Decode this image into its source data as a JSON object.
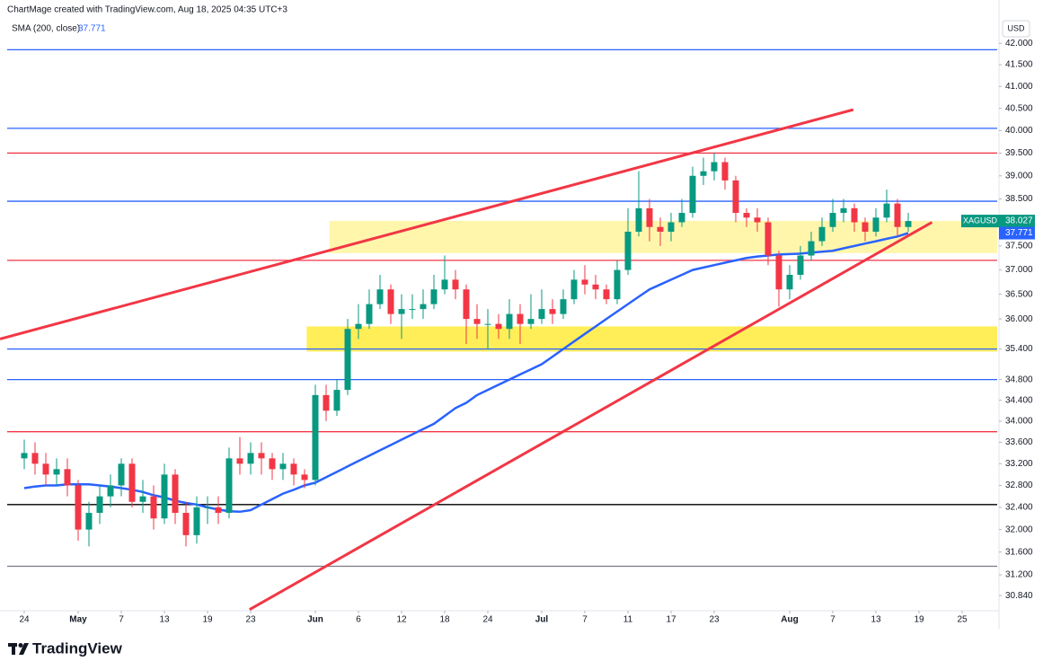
{
  "chart_data": {
    "type": "candlestick",
    "title": "ChartMage created with TradingView.com, Aug 18, 2025 04:35 UTC+3",
    "symbol": "XAGUSD",
    "currency": "USD",
    "brand": "TradingView",
    "log": true,
    "up_color": "#089981",
    "down_color": "#f23645",
    "xlim": [
      -2.25,
      90.25
    ],
    "ylim": [
      30.58,
      42.6
    ],
    "xticks": [
      {
        "value": 0,
        "label": "24"
      },
      {
        "value": 5,
        "label": "May"
      },
      {
        "value": 9,
        "label": "7"
      },
      {
        "value": 13,
        "label": "13"
      },
      {
        "value": 17,
        "label": "19"
      },
      {
        "value": 21,
        "label": "23"
      },
      {
        "value": 27,
        "label": "Jun"
      },
      {
        "value": 31,
        "label": "6"
      },
      {
        "value": 35,
        "label": "12"
      },
      {
        "value": 39,
        "label": "18"
      },
      {
        "value": 43,
        "label": "24"
      },
      {
        "value": 48,
        "label": "Jul"
      },
      {
        "value": 52,
        "label": "7"
      },
      {
        "value": 56,
        "label": "11"
      },
      {
        "value": 60,
        "label": "17"
      },
      {
        "value": 64,
        "label": "23"
      },
      {
        "value": 71,
        "label": "Aug"
      },
      {
        "value": 75,
        "label": "7"
      },
      {
        "value": 79,
        "label": "13"
      },
      {
        "value": 83,
        "label": "19"
      },
      {
        "value": 87,
        "label": "25"
      }
    ],
    "yticks": [
      {
        "value": 42,
        "label": "42.000"
      },
      {
        "value": 41.5,
        "label": "41.500"
      },
      {
        "value": 41,
        "label": "41.000"
      },
      {
        "value": 40.5,
        "label": "40.500"
      },
      {
        "value": 40,
        "label": "40.000"
      },
      {
        "value": 39.5,
        "label": "39.500"
      },
      {
        "value": 39,
        "label": "39.000"
      },
      {
        "value": 38.5,
        "label": "38.500"
      },
      {
        "value": 37.5,
        "label": "37.500"
      },
      {
        "value": 37,
        "label": "37.000"
      },
      {
        "value": 36.5,
        "label": "36.500"
      },
      {
        "value": 36,
        "label": "36.000"
      },
      {
        "value": 35.4,
        "label": "35.400"
      },
      {
        "value": 34.8,
        "label": "34.800"
      },
      {
        "value": 34.4,
        "label": "34.400"
      },
      {
        "value": 34,
        "label": "34.000"
      },
      {
        "value": 33.6,
        "label": "33.600"
      },
      {
        "value": 33.2,
        "label": "33.200"
      },
      {
        "value": 32.8,
        "label": "32.800"
      },
      {
        "value": 32.4,
        "label": "32.400"
      },
      {
        "value": 32,
        "label": "32.000"
      },
      {
        "value": 31.6,
        "label": "31.600"
      },
      {
        "value": 31.2,
        "label": "31.200"
      },
      {
        "value": 30.84,
        "label": "30.840"
      }
    ],
    "x": [
      0,
      1,
      2,
      3,
      4,
      5,
      6,
      7,
      8,
      9,
      10,
      11,
      12,
      13,
      14,
      15,
      16,
      17,
      18,
      19,
      20,
      21,
      22,
      23,
      24,
      25,
      26,
      27,
      28,
      29,
      30,
      31,
      32,
      33,
      34,
      35,
      36,
      37,
      38,
      39,
      40,
      41,
      42,
      43,
      44,
      45,
      46,
      47,
      48,
      49,
      50,
      51,
      52,
      53,
      54,
      55,
      56,
      57,
      58,
      59,
      60,
      61,
      62,
      63,
      64,
      65,
      66,
      67,
      68,
      69,
      70,
      71,
      72,
      73,
      74,
      75,
      76,
      77,
      78,
      79,
      80,
      81,
      82
    ],
    "open": [
      33.3,
      33.4,
      33.2,
      33.0,
      33.1,
      32.8,
      32.0,
      32.3,
      32.6,
      32.8,
      33.2,
      32.5,
      32.6,
      32.2,
      33.0,
      32.3,
      31.9,
      32.4,
      32.4,
      32.3,
      33.3,
      33.2,
      33.4,
      33.3,
      33.1,
      33.2,
      33.0,
      32.9,
      34.5,
      34.2,
      34.6,
      35.8,
      35.9,
      36.3,
      36.6,
      36.1,
      36.2,
      36.2,
      36.3,
      36.6,
      36.8,
      36.6,
      36.0,
      35.9,
      35.9,
      35.8,
      36.1,
      35.9,
      36.0,
      36.2,
      36.1,
      36.4,
      36.8,
      36.7,
      36.6,
      36.4,
      37.0,
      37.8,
      38.3,
      37.9,
      37.8,
      38.0,
      38.2,
      39.0,
      39.1,
      39.3,
      38.9,
      38.2,
      38.1,
      38.0,
      37.3,
      36.6,
      36.9,
      37.3,
      37.6,
      37.9,
      38.2,
      38.3,
      38.0,
      37.8,
      38.1,
      38.4,
      37.9
    ],
    "high": [
      33.65,
      33.6,
      33.4,
      33.3,
      33.3,
      32.9,
      32.5,
      32.8,
      33.0,
      33.3,
      33.3,
      32.9,
      32.8,
      33.2,
      33.1,
      32.5,
      32.6,
      32.6,
      32.6,
      33.5,
      33.7,
      33.6,
      33.6,
      33.4,
      33.4,
      33.3,
      33.1,
      34.7,
      34.7,
      34.8,
      36.0,
      36.3,
      36.6,
      36.9,
      36.7,
      36.5,
      36.5,
      36.6,
      36.9,
      37.3,
      37.0,
      36.7,
      36.3,
      36.2,
      36.1,
      36.4,
      36.3,
      36.5,
      36.6,
      36.4,
      36.6,
      37.0,
      37.1,
      36.9,
      36.7,
      37.2,
      38.3,
      39.1,
      38.5,
      38.1,
      38.2,
      38.5,
      39.2,
      39.4,
      39.5,
      39.4,
      39.0,
      38.3,
      38.3,
      38.1,
      37.4,
      37.1,
      37.5,
      37.8,
      38.1,
      38.5,
      38.5,
      38.4,
      38.1,
      38.3,
      38.7,
      38.5,
      38.2
    ],
    "low": [
      33.1,
      33.0,
      32.8,
      32.8,
      32.6,
      31.8,
      31.7,
      32.1,
      32.4,
      32.6,
      32.4,
      32.3,
      32.0,
      32.1,
      32.1,
      31.7,
      31.75,
      32.1,
      32.1,
      32.2,
      33.0,
      33.0,
      33.0,
      32.9,
      32.9,
      32.8,
      32.75,
      32.8,
      34.0,
      34.1,
      34.5,
      35.6,
      35.8,
      36.2,
      35.9,
      35.6,
      36.0,
      36.0,
      36.2,
      36.5,
      36.4,
      35.5,
      35.6,
      35.4,
      35.6,
      35.6,
      35.5,
      35.8,
      35.9,
      35.9,
      36.0,
      36.3,
      36.5,
      36.4,
      36.3,
      36.3,
      36.9,
      37.7,
      37.6,
      37.5,
      37.6,
      37.9,
      38.1,
      38.8,
      38.9,
      38.7,
      38.0,
      37.9,
      37.8,
      37.1,
      36.25,
      36.4,
      36.8,
      37.2,
      37.5,
      37.8,
      38.0,
      37.8,
      37.6,
      37.7,
      38.0,
      37.7,
      37.8
    ],
    "close": [
      33.4,
      33.2,
      33.0,
      33.1,
      32.8,
      32.0,
      32.3,
      32.6,
      32.8,
      33.2,
      32.5,
      32.6,
      32.2,
      33.0,
      32.3,
      31.9,
      32.4,
      32.4,
      32.3,
      33.3,
      33.2,
      33.4,
      33.3,
      33.1,
      33.2,
      33.0,
      32.9,
      34.5,
      34.2,
      34.6,
      35.8,
      35.9,
      36.3,
      36.6,
      36.1,
      36.2,
      36.2,
      36.3,
      36.6,
      36.8,
      36.6,
      36.0,
      35.9,
      35.9,
      35.8,
      36.1,
      35.9,
      36.0,
      36.2,
      36.1,
      36.4,
      36.8,
      36.7,
      36.6,
      36.4,
      37.0,
      37.8,
      38.3,
      37.9,
      37.8,
      38.0,
      38.2,
      39.0,
      39.1,
      39.3,
      38.9,
      38.2,
      38.1,
      38.0,
      37.3,
      36.6,
      36.9,
      37.3,
      37.6,
      37.9,
      38.2,
      38.3,
      38.0,
      37.8,
      38.1,
      38.4,
      37.9,
      38.027
    ],
    "sma": {
      "name": "SMA (200, close)",
      "color": "#2962ff",
      "values": [
        32.75,
        32.78,
        32.8,
        32.8,
        32.82,
        32.82,
        32.82,
        32.8,
        32.78,
        32.75,
        32.72,
        32.68,
        32.62,
        32.58,
        32.52,
        32.48,
        32.45,
        32.4,
        32.36,
        32.33,
        32.32,
        32.35,
        32.45,
        32.55,
        32.65,
        32.72,
        32.8,
        32.85,
        32.95,
        33.05,
        33.15,
        33.25,
        33.35,
        33.45,
        33.55,
        33.65,
        33.75,
        33.85,
        33.95,
        34.1,
        34.25,
        34.35,
        34.5,
        34.6,
        34.7,
        34.8,
        34.9,
        35.0,
        35.1,
        35.25,
        35.4,
        35.55,
        35.7,
        35.85,
        36.0,
        36.15,
        36.3,
        36.45,
        36.6,
        36.7,
        36.8,
        36.9,
        37.0,
        37.05,
        37.1,
        37.15,
        37.2,
        37.25,
        37.28,
        37.3,
        37.32,
        37.33,
        37.34,
        37.36,
        37.38,
        37.4,
        37.45,
        37.5,
        37.55,
        37.6,
        37.65,
        37.7,
        37.771
      ]
    },
    "levels": [
      {
        "value": 41.85,
        "color": "#2962ff"
      },
      {
        "value": 40.05,
        "color": "#2962ff"
      },
      {
        "value": 39.5,
        "color": "#f23645"
      },
      {
        "value": 38.45,
        "color": "#2962ff"
      },
      {
        "value": 37.2,
        "color": "#f23645"
      },
      {
        "value": 35.4,
        "color": "#2962ff"
      },
      {
        "value": 34.8,
        "color": "#2962ff"
      },
      {
        "value": 33.8,
        "color": "#f23645"
      },
      {
        "value": 32.45,
        "color": "#000000"
      },
      {
        "value": 31.35,
        "color": "#787b86"
      }
    ],
    "zones": [
      {
        "x": 28.3,
        "top": 38.03,
        "bottom": 37.35,
        "color": "#fff59d"
      },
      {
        "x": 26.2,
        "top": 35.85,
        "bottom": 35.35,
        "color": "#ffeb3b"
      }
    ],
    "trendlines": [
      {
        "x": [
          -2.25,
          76.9
        ],
        "y": [
          35.6,
          40.47
        ],
        "color": "#f23645"
      },
      {
        "x": [
          20.9,
          84.2
        ],
        "y": [
          30.6,
          38.0
        ],
        "color": "#f23645"
      }
    ]
  }
}
